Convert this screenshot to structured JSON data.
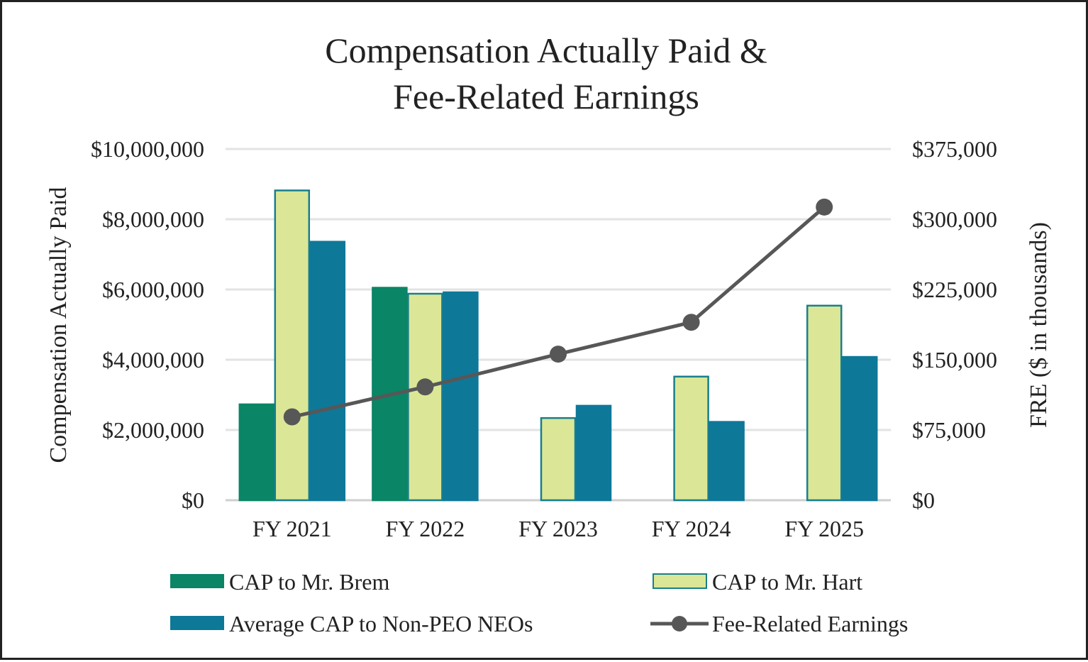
{
  "chart_data": {
    "type": "bar",
    "title_lines": [
      "Compensation Actually Paid &",
      "Fee-Related Earnings"
    ],
    "xlabel": "",
    "ylabel": "Compensation Actually Paid",
    "y2label": "FRE ($ in thousands)",
    "categories": [
      "FY 2021",
      "FY 2022",
      "FY 2023",
      "FY 2024",
      "FY 2025"
    ],
    "ylim": [
      0,
      10000000
    ],
    "y_ticks": [
      0,
      2000000,
      4000000,
      6000000,
      8000000,
      10000000
    ],
    "y_tick_labels": [
      "$0",
      "$2,000,000",
      "$4,000,000",
      "$6,000,000",
      "$8,000,000",
      "$10,000,000"
    ],
    "y2lim": [
      0,
      375000
    ],
    "y2_ticks": [
      0,
      75000,
      150000,
      225000,
      300000,
      375000
    ],
    "y2_tick_labels": [
      "$0",
      "$75,000",
      "$150,000",
      "$225,000",
      "$300,000",
      "$375,000"
    ],
    "grid": true,
    "legend_position": "bottom",
    "series": [
      {
        "name": "CAP to Mr. Brem",
        "kind": "bar",
        "axis": "left",
        "color": "#0a8566",
        "stroke": "#0a8566",
        "values": [
          2730000,
          6050000,
          null,
          null,
          null
        ]
      },
      {
        "name": "CAP to Mr. Hart",
        "kind": "bar",
        "axis": "left",
        "color": "#dbe797",
        "stroke": "#197f8c",
        "values": [
          8820000,
          5880000,
          2340000,
          3520000,
          5540000
        ]
      },
      {
        "name": "Average CAP to Non-PEO NEOs",
        "kind": "bar",
        "axis": "left",
        "color": "#0e7899",
        "stroke": "#0e7899",
        "values": [
          7360000,
          5920000,
          2690000,
          2230000,
          4080000
        ]
      },
      {
        "name": "Fee-Related Earnings",
        "kind": "line",
        "axis": "right",
        "color": "#575757",
        "values": [
          89000,
          121000,
          156000,
          190000,
          313000
        ]
      }
    ]
  }
}
